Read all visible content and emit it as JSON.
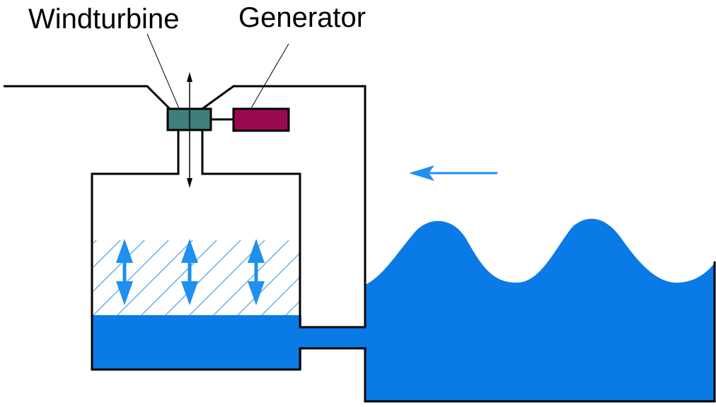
{
  "labels": {
    "windturbine": "Windturbine",
    "generator": "Generator"
  },
  "colors": {
    "water": "#0a7ae6",
    "hatch": "#4aa3df",
    "turbine": "#3e7f7a",
    "generator": "#9a0a50",
    "arrow": "#1f8ff0",
    "line": "#000000"
  },
  "icons": {
    "air-flow": "double-arrow-vertical",
    "water-level": "double-arrow-vertical",
    "wave-direction": "arrow-left"
  }
}
